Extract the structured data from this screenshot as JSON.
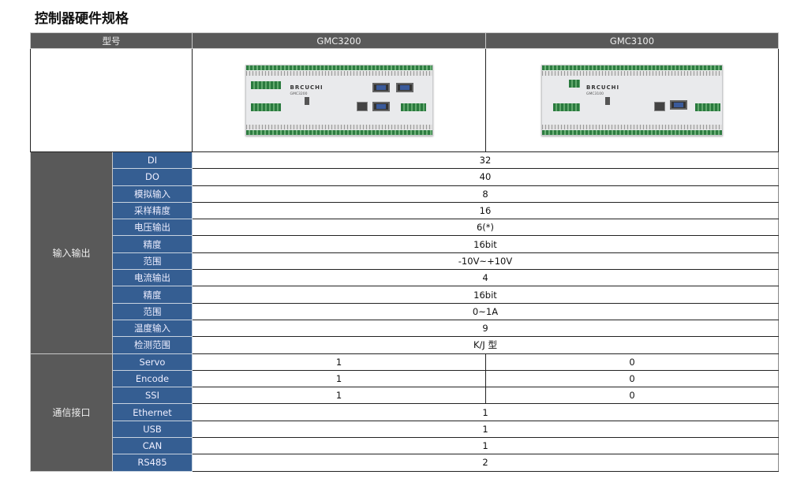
{
  "title": "控制器硬件规格",
  "header": {
    "model_label": "型号",
    "models": [
      "GMC3200",
      "GMC3100"
    ]
  },
  "product_images": [
    {
      "brand": "BRCUCHI",
      "model": "GMC3200"
    },
    {
      "brand": "BRCUCHI",
      "model": "GMC3100"
    }
  ],
  "groups": [
    {
      "label": "输入输出",
      "rows": [
        {
          "label": "DI",
          "value": "32"
        },
        {
          "label": "DO",
          "value": "40"
        },
        {
          "label": "模拟输入",
          "value": "8"
        },
        {
          "label": "采样精度",
          "value": "16"
        },
        {
          "label": "电压输出",
          "value": "6(*)"
        },
        {
          "label": "精度",
          "value": "16bit"
        },
        {
          "label": "范围",
          "value": "-10V~+10V"
        },
        {
          "label": "电流输出",
          "value": "4"
        },
        {
          "label": "精度",
          "value": "16bit"
        },
        {
          "label": "范围",
          "value": "0~1A"
        },
        {
          "label": "温度输入",
          "value": "9"
        },
        {
          "label": "检测范围",
          "value": "K/J 型"
        }
      ]
    },
    {
      "label": "通信接口",
      "rows": [
        {
          "label": "Servo",
          "values": [
            "1",
            "0"
          ]
        },
        {
          "label": "Encode",
          "values": [
            "1",
            "0"
          ]
        },
        {
          "label": "SSI",
          "values": [
            "1",
            "0"
          ]
        },
        {
          "label": "Ethernet",
          "value": "1"
        },
        {
          "label": "USB",
          "value": "1"
        },
        {
          "label": "CAN",
          "value": "1"
        },
        {
          "label": "RS485",
          "value": "2"
        }
      ]
    }
  ]
}
